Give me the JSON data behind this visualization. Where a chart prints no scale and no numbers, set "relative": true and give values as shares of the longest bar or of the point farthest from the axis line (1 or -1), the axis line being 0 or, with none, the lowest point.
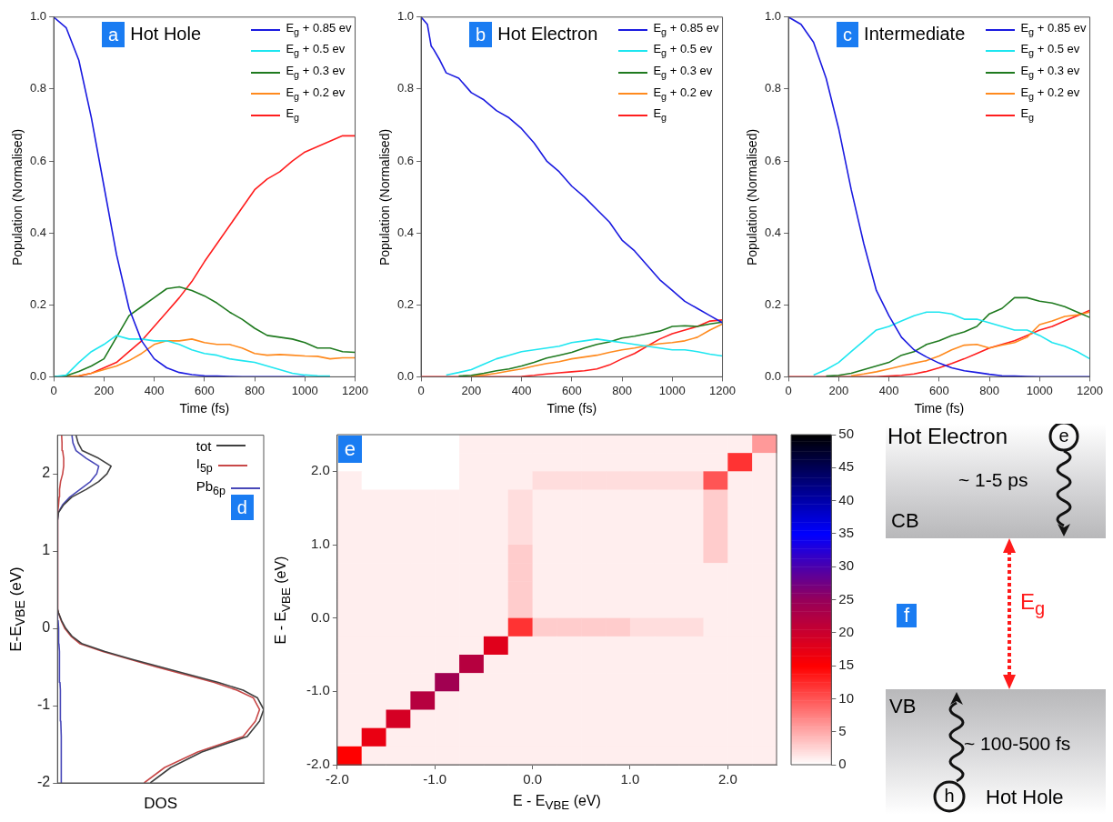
{
  "chart_data": [
    {
      "type": "line",
      "title": "Hot Hole",
      "annotations": [
        "a"
      ],
      "xlabel": "Time (fs)",
      "ylabel": "Population (Normalised)",
      "x": [
        0,
        50,
        100,
        150,
        200,
        250,
        300,
        350,
        400,
        450,
        500,
        550,
        600,
        650,
        700,
        750,
        800,
        850,
        900,
        950,
        1000,
        1050,
        1100,
        1150,
        1200
      ],
      "xlim": [
        0,
        1200
      ],
      "xticks": [
        0,
        200,
        400,
        600,
        800,
        1000,
        1200
      ],
      "ylim": [
        0,
        1
      ],
      "yticks": [
        {
          "value": 0,
          "label": "0.0"
        },
        {
          "value": 0.2,
          "label": "0.2"
        },
        {
          "value": 0.4,
          "label": "0.4"
        },
        {
          "value": 0.6,
          "label": "0.6"
        },
        {
          "value": 0.8,
          "label": "0.8"
        },
        {
          "value": 1,
          "label": "1.0"
        }
      ],
      "legend": "top right",
      "series": [
        {
          "name": "E$_{g}$ + 0.85 ev",
          "color": "#1a1ae0",
          "values": [
            1.0,
            0.97,
            0.88,
            0.72,
            0.53,
            0.34,
            0.19,
            0.1,
            0.05,
            0.025,
            0.012,
            0.006,
            0.003,
            0.002,
            0.001,
            0,
            0,
            0,
            0,
            0,
            0,
            null,
            null,
            null,
            null
          ]
        },
        {
          "name": "E$_{g}$ + 0.5 ev",
          "color": "#1ee6f0",
          "values": [
            0,
            0.005,
            0.04,
            0.07,
            0.09,
            0.115,
            0.105,
            0.105,
            0.1,
            0.1,
            0.09,
            0.075,
            0.065,
            0.06,
            0.05,
            0.045,
            0.04,
            0.03,
            0.02,
            0.01,
            0.005,
            0.003,
            0.002,
            null,
            null
          ]
        },
        {
          "name": "E$_{g}$ + 0.3 ev",
          "color": "#1f7a1f",
          "values": [
            0,
            0.003,
            0.015,
            0.03,
            0.05,
            0.11,
            0.17,
            0.195,
            0.22,
            0.245,
            0.25,
            0.24,
            0.225,
            0.205,
            0.18,
            0.16,
            0.135,
            0.115,
            0.11,
            0.105,
            0.095,
            0.08,
            0.08,
            0.07,
            0.068
          ]
        },
        {
          "name": "E$_{g}$ + 0.2 ev",
          "color": "#ff8a1e",
          "values": [
            0,
            0,
            0.003,
            0.01,
            0.02,
            0.03,
            0.045,
            0.065,
            0.09,
            0.1,
            0.1,
            0.105,
            0.095,
            0.09,
            0.09,
            0.08,
            0.065,
            0.06,
            0.062,
            0.06,
            0.058,
            0.057,
            0.05,
            0.053,
            0.053
          ]
        },
        {
          "name": "E$_{g}$",
          "color": "#ff1e1e",
          "values": [
            0,
            0,
            0.002,
            0.01,
            0.025,
            0.04,
            0.07,
            0.1,
            0.14,
            0.18,
            0.22,
            0.265,
            0.32,
            0.37,
            0.42,
            0.47,
            0.52,
            0.55,
            0.57,
            0.6,
            0.625,
            0.64,
            0.655,
            0.67,
            0.67
          ]
        }
      ]
    },
    {
      "type": "line",
      "title": "Hot Electron",
      "annotations": [
        "b"
      ],
      "xlabel": "Time (fs)",
      "ylabel": "Population (Normalised)",
      "x": [
        0,
        50,
        100,
        150,
        200,
        250,
        300,
        350,
        400,
        450,
        500,
        550,
        600,
        650,
        700,
        750,
        800,
        850,
        900,
        950,
        1000,
        1050,
        1100,
        1150,
        1200
      ],
      "xlim": [
        0,
        1200
      ],
      "xticks": [
        0,
        200,
        400,
        600,
        800,
        1000,
        1200
      ],
      "ylim": [
        0,
        1
      ],
      "yticks": [
        {
          "value": 0,
          "label": "0.0"
        },
        {
          "value": 0.2,
          "label": "0.2"
        },
        {
          "value": 0.4,
          "label": "0.4"
        },
        {
          "value": 0.6,
          "label": "0.6"
        },
        {
          "value": 0.8,
          "label": "0.8"
        },
        {
          "value": 1,
          "label": "1.0"
        }
      ],
      "legend": "top right",
      "series": [
        {
          "name": "E$_{g}$ + 0.85 ev",
          "color": "#1a1ae0",
          "x": [
            0,
            25,
            40,
            50,
            75,
            100,
            150,
            200,
            250,
            300,
            350,
            400,
            450,
            500,
            550,
            600,
            650,
            700,
            750,
            800,
            850,
            900,
            950,
            1000,
            1050,
            1100,
            1150,
            1200
          ],
          "values": [
            1.0,
            0.98,
            0.92,
            0.91,
            0.88,
            0.845,
            0.83,
            0.79,
            0.77,
            0.74,
            0.72,
            0.69,
            0.65,
            0.6,
            0.57,
            0.53,
            0.5,
            0.465,
            0.43,
            0.38,
            0.35,
            0.31,
            0.27,
            0.24,
            0.21,
            0.19,
            0.17,
            0.15
          ]
        },
        {
          "name": "E$_{g}$ + 0.5 ev",
          "color": "#1ee6f0",
          "values": [
            null,
            null,
            0.005,
            0.012,
            0.02,
            0.035,
            0.05,
            0.06,
            0.07,
            0.075,
            0.08,
            0.085,
            0.095,
            0.1,
            0.105,
            0.1,
            0.095,
            0.09,
            0.085,
            0.08,
            0.075,
            0.075,
            0.07,
            0.063,
            0.058
          ]
        },
        {
          "name": "E$_{g}$ + 0.3 ev",
          "color": "#1f7a1f",
          "values": [
            null,
            null,
            null,
            0.002,
            0.004,
            0.01,
            0.017,
            0.022,
            0.03,
            0.04,
            0.052,
            0.06,
            0.068,
            0.08,
            0.09,
            0.097,
            0.108,
            0.113,
            0.12,
            0.127,
            0.14,
            0.142,
            0.14,
            0.147,
            0.152
          ]
        },
        {
          "name": "E$_{g}$ + 0.2 ev",
          "color": "#ff8a1e",
          "values": [
            null,
            null,
            null,
            null,
            0.002,
            0.005,
            0.01,
            0.016,
            0.022,
            0.03,
            0.037,
            0.042,
            0.05,
            0.055,
            0.06,
            0.068,
            0.075,
            0.08,
            0.087,
            0.092,
            0.095,
            0.1,
            0.11,
            0.13,
            0.147
          ]
        },
        {
          "name": "E$_{g}$",
          "color": "#ff1e1e",
          "values": [
            0,
            0,
            0,
            0,
            0,
            0,
            0,
            0,
            0.001,
            0.004,
            0.008,
            0.011,
            0.014,
            0.017,
            0.022,
            0.033,
            0.05,
            0.065,
            0.085,
            0.105,
            0.12,
            0.13,
            0.14,
            0.155,
            0.158
          ]
        }
      ]
    },
    {
      "type": "line",
      "title": "Intermediate",
      "annotations": [
        "c"
      ],
      "xlabel": "Time (fs)",
      "ylabel": "Population (Normalised)",
      "x": [
        0,
        50,
        100,
        150,
        200,
        250,
        300,
        350,
        400,
        450,
        500,
        550,
        600,
        650,
        700,
        750,
        800,
        850,
        900,
        950,
        1000,
        1050,
        1100,
        1150,
        1200
      ],
      "xlim": [
        0,
        1200
      ],
      "xticks": [
        0,
        200,
        400,
        600,
        800,
        1000,
        1200
      ],
      "ylim": [
        0,
        1
      ],
      "yticks": [
        {
          "value": 0,
          "label": "0.0"
        },
        {
          "value": 0.2,
          "label": "0.2"
        },
        {
          "value": 0.4,
          "label": "0.4"
        },
        {
          "value": 0.6,
          "label": "0.6"
        },
        {
          "value": 0.8,
          "label": "0.8"
        },
        {
          "value": 1,
          "label": "1.0"
        }
      ],
      "legend": "top right",
      "series": [
        {
          "name": "E$_{g}$ + 0.85 ev",
          "color": "#1a1ae0",
          "values": [
            1.0,
            0.98,
            0.93,
            0.83,
            0.69,
            0.52,
            0.37,
            0.24,
            0.17,
            0.11,
            0.075,
            0.055,
            0.038,
            0.025,
            0.017,
            0.012,
            0.007,
            0.003,
            0.002,
            0.001,
            0,
            0,
            0,
            0,
            0
          ]
        },
        {
          "name": "E$_{g}$ + 0.5 ev",
          "color": "#1ee6f0",
          "values": [
            null,
            null,
            0.005,
            0.02,
            0.04,
            0.07,
            0.1,
            0.13,
            0.14,
            0.155,
            0.17,
            0.18,
            0.18,
            0.175,
            0.16,
            0.16,
            0.15,
            0.14,
            0.13,
            0.13,
            0.115,
            0.095,
            0.085,
            0.07,
            0.05
          ]
        },
        {
          "name": "E$_{g}$ + 0.3 ev",
          "color": "#1f7a1f",
          "values": [
            null,
            null,
            null,
            0.002,
            0.004,
            0.01,
            0.02,
            0.03,
            0.04,
            0.06,
            0.07,
            0.09,
            0.1,
            0.115,
            0.125,
            0.14,
            0.175,
            0.19,
            0.22,
            0.22,
            0.21,
            0.205,
            0.195,
            0.18,
            0.165
          ]
        },
        {
          "name": "E$_{g}$ + 0.2 ev",
          "color": "#ff8a1e",
          "values": [
            null,
            null,
            null,
            null,
            null,
            0.003,
            0.008,
            0.014,
            0.022,
            0.03,
            0.038,
            0.045,
            0.058,
            0.075,
            0.088,
            0.09,
            0.08,
            0.088,
            0.095,
            0.11,
            0.145,
            0.155,
            0.168,
            0.172,
            0.18
          ]
        },
        {
          "name": "E$_{g}$",
          "color": "#ff1e1e",
          "values": [
            0,
            0,
            0,
            0,
            0,
            0,
            0,
            0,
            0.002,
            0.004,
            0.008,
            0.015,
            0.025,
            0.037,
            0.05,
            0.065,
            0.08,
            0.09,
            0.1,
            0.115,
            0.13,
            0.14,
            0.155,
            0.17,
            0.185
          ]
        }
      ]
    },
    {
      "type": "line",
      "orientation": "horizontal",
      "relative": true,
      "annotations": [
        "d"
      ],
      "xlabel": "DOS",
      "ylabel": "E-E$_{VBE}$ (eV)",
      "x": [
        -2,
        -1.8,
        -1.6,
        -1.4,
        -1.2,
        -1.05,
        -0.9,
        -0.8,
        -0.7,
        -0.6,
        -0.5,
        -0.4,
        -0.3,
        -0.2,
        -0.1,
        0,
        0.1,
        0.2,
        0.25,
        1.4,
        1.5,
        1.6,
        1.7,
        1.8,
        1.9,
        2.0,
        2.1,
        2.2,
        2.3,
        2.4,
        2.5
      ],
      "ylim": [
        -2,
        2.5
      ],
      "yticks": [
        -2,
        -1,
        0,
        1,
        2
      ],
      "legend": "top right",
      "series": [
        {
          "name": "tot",
          "color": "#404040",
          "values": [
            0.45,
            0.55,
            0.7,
            0.92,
            0.98,
            1,
            0.97,
            0.9,
            0.78,
            0.64,
            0.5,
            0.36,
            0.23,
            0.12,
            0.07,
            0.04,
            0.02,
            0.005,
            0,
            0,
            0.005,
            0.03,
            0.07,
            0.14,
            0.2,
            0.24,
            0.26,
            0.2,
            0.12,
            0.1,
            0.09
          ]
        },
        {
          "name": "I$_{5p}$",
          "color": "#c84848",
          "values": [
            0.42,
            0.52,
            0.68,
            0.9,
            0.96,
            0.98,
            0.95,
            0.87,
            0.76,
            0.62,
            0.48,
            0.35,
            0.22,
            0.11,
            0.065,
            0.035,
            0.018,
            0.005,
            0,
            0,
            0.002,
            0.005,
            0.008,
            0.01,
            0.015,
            0.025,
            0.03,
            0.03,
            0.025,
            0.022,
            0.02
          ]
        },
        {
          "name": "Pb$_{6p}$",
          "color": "#4848b8",
          "values": [
            0.02,
            0.02,
            0.018,
            0.017,
            0.016,
            0.015,
            0.014,
            0.013,
            0.012,
            0.011,
            0.01,
            0.009,
            0.008,
            0.007,
            0.006,
            0.005,
            0.003,
            0.001,
            0,
            0,
            0.004,
            0.025,
            0.06,
            0.11,
            0.16,
            0.19,
            0.2,
            0.14,
            0.09,
            0.075,
            0.07
          ]
        }
      ]
    },
    {
      "type": "heatmap",
      "annotations": [
        "e"
      ],
      "xlabel": "E - E$_{VBE}$ (eV)",
      "ylabel": "E - E$_{VBE}$ (eV)",
      "xlim": [
        -2,
        2.5
      ],
      "ylim": [
        -2,
        2.5
      ],
      "xticks": [
        {
          "value": -2,
          "label": "-2.0"
        },
        {
          "value": -1,
          "label": "-1.0"
        },
        {
          "value": 0,
          "label": "0.0"
        },
        {
          "value": 1,
          "label": "1.0"
        },
        {
          "value": 2,
          "label": "2.0"
        }
      ],
      "yticks": [
        {
          "value": -2,
          "label": "-2.0"
        },
        {
          "value": -1,
          "label": "-1.0"
        },
        {
          "value": 0,
          "label": "0.0"
        },
        {
          "value": 1,
          "label": "1.0"
        },
        {
          "value": 2,
          "label": "2.0"
        }
      ],
      "clim": [
        0,
        50
      ],
      "cticks": [
        0,
        5,
        10,
        15,
        20,
        25,
        30,
        35,
        40,
        45,
        50
      ],
      "cells": [
        [
          null,
          0,
          0,
          0,
          0,
          1,
          1,
          1,
          1,
          1,
          1,
          1,
          1,
          1,
          1,
          1,
          1,
          6
        ],
        [
          null,
          0,
          0,
          0,
          0,
          1,
          1,
          1,
          1,
          1,
          1,
          1,
          1,
          1,
          1,
          1,
          12,
          1
        ],
        [
          1,
          0,
          0,
          0,
          0,
          1,
          1,
          1,
          2,
          2,
          2,
          2,
          2,
          2,
          2,
          10,
          1,
          1
        ],
        [
          1,
          1,
          1,
          1,
          1,
          1,
          1,
          2,
          1,
          1,
          1,
          1,
          1,
          1,
          1,
          3,
          1,
          1
        ],
        [
          1,
          1,
          1,
          1,
          1,
          1,
          1,
          2,
          1,
          1,
          1,
          1,
          1,
          1,
          1,
          3,
          1,
          1
        ],
        [
          1,
          1,
          1,
          1,
          1,
          1,
          1,
          2,
          1,
          1,
          1,
          1,
          1,
          1,
          1,
          3,
          1,
          1
        ],
        [
          1,
          1,
          1,
          1,
          1,
          1,
          1,
          3,
          1,
          1,
          1,
          1,
          1,
          1,
          1,
          3,
          1,
          1
        ],
        [
          1,
          1,
          1,
          1,
          1,
          1,
          1,
          3,
          1,
          1,
          1,
          1,
          1,
          1,
          1,
          1,
          1,
          1
        ],
        [
          1,
          1,
          1,
          1,
          1,
          1,
          1,
          3,
          1,
          1,
          1,
          1,
          1,
          1,
          1,
          1,
          1,
          1
        ],
        [
          1,
          1,
          1,
          1,
          1,
          1,
          1,
          3,
          1,
          1,
          1,
          1,
          1,
          1,
          1,
          1,
          1,
          1
        ],
        [
          1,
          1,
          1,
          1,
          1,
          1,
          1,
          12,
          3,
          3,
          3,
          3,
          2,
          2,
          2,
          1,
          1,
          1
        ],
        [
          1,
          1,
          1,
          1,
          1,
          1,
          18,
          1,
          1,
          1,
          1,
          1,
          1,
          1,
          1,
          1,
          1,
          1
        ],
        [
          1,
          1,
          1,
          1,
          1,
          22,
          1,
          1,
          1,
          1,
          1,
          1,
          1,
          1,
          1,
          1,
          1,
          1
        ],
        [
          1,
          1,
          1,
          1,
          24,
          1,
          1,
          1,
          1,
          1,
          1,
          1,
          1,
          1,
          1,
          1,
          1,
          1
        ],
        [
          1,
          1,
          1,
          22,
          1,
          1,
          1,
          1,
          1,
          1,
          1,
          1,
          1,
          1,
          1,
          1,
          1,
          1
        ],
        [
          1,
          1,
          19,
          1,
          1,
          1,
          1,
          1,
          1,
          1,
          1,
          1,
          1,
          1,
          1,
          1,
          1,
          1
        ],
        [
          1,
          17,
          1,
          1,
          1,
          1,
          1,
          1,
          1,
          1,
          1,
          1,
          1,
          1,
          1,
          1,
          1,
          1
        ],
        [
          15,
          1,
          1,
          1,
          1,
          1,
          1,
          1,
          1,
          1,
          1,
          1,
          1,
          1,
          1,
          1,
          1,
          1
        ]
      ]
    },
    {
      "type": "other",
      "annotations": [
        "Hot Electron",
        "e",
        "~ 1-5 ps",
        "CB",
        "E$_{g}$",
        "f",
        "VB",
        "~ 100-500 fs",
        "h",
        "Hot Hole"
      ]
    }
  ]
}
